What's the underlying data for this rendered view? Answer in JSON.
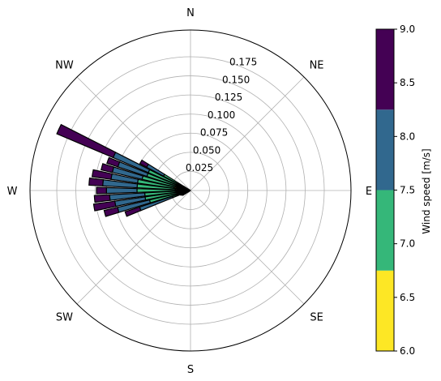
{
  "chart_data": {
    "type": "windrose",
    "directions": [
      "N",
      "NE",
      "E",
      "SE",
      "S",
      "SW",
      "W",
      "NW"
    ],
    "radial_ticks": [
      "0.025",
      "0.050",
      "0.075",
      "0.100",
      "0.125",
      "0.150",
      "0.175"
    ],
    "radial_tick_values": [
      0.025,
      0.05,
      0.075,
      0.1,
      0.125,
      0.15,
      0.175
    ],
    "rmax": 0.21,
    "colorbar": {
      "label": "Wind speed [m/s]",
      "ticks": [
        "6.0",
        "6.5",
        "7.0",
        "7.5",
        "8.0",
        "8.5",
        "9.0"
      ],
      "tick_values": [
        6.0,
        6.5,
        7.0,
        7.5,
        8.0,
        8.5,
        9.0
      ],
      "range": [
        6.0,
        9.0
      ],
      "bins": [
        {
          "from": 6.0,
          "to": 6.75,
          "color": "#fde725"
        },
        {
          "from": 6.75,
          "to": 7.5,
          "color": "#35b779"
        },
        {
          "from": 7.5,
          "to": 8.25,
          "color": "#31688e"
        },
        {
          "from": 8.25,
          "to": 9.0,
          "color": "#440154"
        }
      ]
    },
    "sectors": [
      {
        "direction_deg": 240,
        "cumulative": [
          0.003,
          0.008,
          0.012,
          0.012
        ]
      },
      {
        "direction_deg": 245,
        "cumulative": [
          0.004,
          0.009,
          0.014,
          0.014
        ]
      },
      {
        "direction_deg": 250,
        "cumulative": [
          0.005,
          0.025,
          0.07,
          0.09
        ]
      },
      {
        "direction_deg": 255,
        "cumulative": [
          0.01,
          0.055,
          0.098,
          0.116
        ]
      },
      {
        "direction_deg": 260,
        "cumulative": [
          0.015,
          0.06,
          0.1,
          0.128
        ]
      },
      {
        "direction_deg": 265,
        "cumulative": [
          0.018,
          0.06,
          0.106,
          0.126
        ]
      },
      {
        "direction_deg": 270,
        "cumulative": [
          0.02,
          0.07,
          0.11,
          0.123
        ]
      },
      {
        "direction_deg": 275,
        "cumulative": [
          0.02,
          0.07,
          0.115,
          0.133
        ]
      },
      {
        "direction_deg": 280,
        "cumulative": [
          0.022,
          0.07,
          0.105,
          0.13
        ]
      },
      {
        "direction_deg": 285,
        "cumulative": [
          0.02,
          0.065,
          0.105,
          0.12
        ]
      },
      {
        "direction_deg": 290,
        "cumulative": [
          0.018,
          0.06,
          0.1,
          0.115
        ]
      },
      {
        "direction_deg": 295,
        "cumulative": [
          0.015,
          0.06,
          0.11,
          0.19
        ]
      },
      {
        "direction_deg": 300,
        "cumulative": [
          0.01,
          0.04,
          0.065,
          0.075
        ]
      }
    ]
  }
}
